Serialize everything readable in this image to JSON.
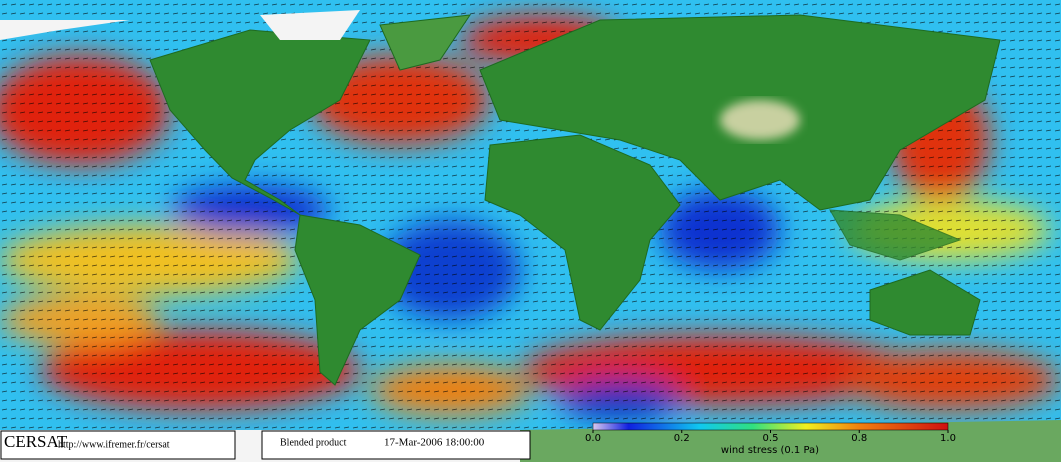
{
  "logo": {
    "name": "CERSAT",
    "url": "http://www.ifremer.fr/cersat"
  },
  "product": {
    "label": "Blended product",
    "timestamp": "17-Mar-2006 18:00:00"
  },
  "colorbar": {
    "title": "wind stress (0.1 Pa)",
    "ticks": [
      {
        "value": 0,
        "label": "0.0"
      },
      {
        "value": 0.2,
        "label": "0.2"
      },
      {
        "value": 0.5,
        "label": "0.5"
      },
      {
        "value": 0.8,
        "label": "0.8"
      },
      {
        "value": 1,
        "label": "1.0"
      }
    ]
  }
}
